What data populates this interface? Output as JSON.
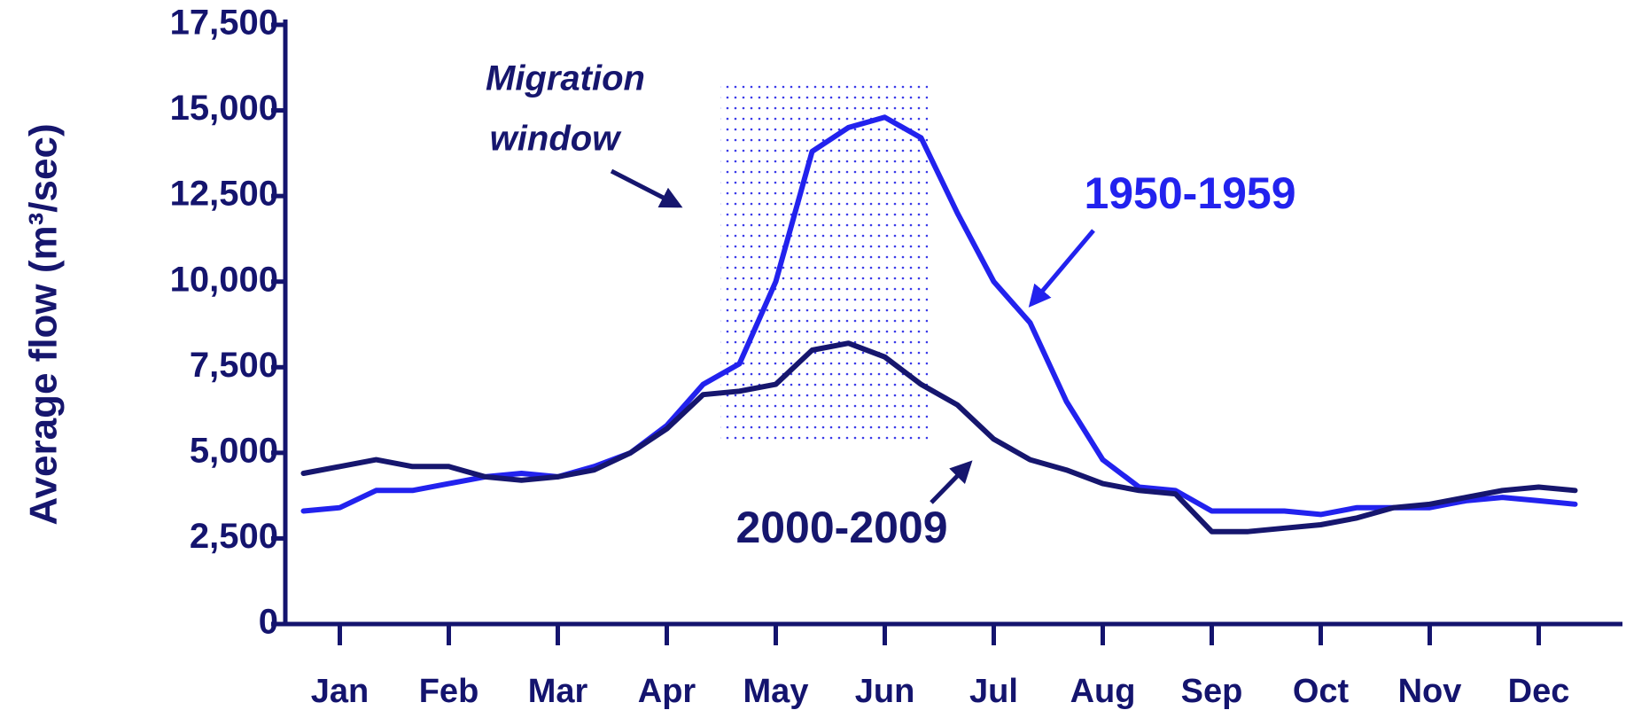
{
  "chart_data": {
    "type": "line",
    "y_label": "Average flow (m³/sec)",
    "annotation_lines": [
      "Migration",
      "window"
    ],
    "categories": [
      null,
      "Jan",
      null,
      null,
      "Feb",
      null,
      null,
      "Mar",
      null,
      null,
      "Apr",
      null,
      null,
      "May",
      null,
      null,
      "Jun",
      null,
      null,
      "Jul",
      null,
      null,
      "Aug",
      null,
      null,
      "Sep",
      null,
      null,
      "Oct",
      null,
      null,
      "Nov",
      null,
      null,
      "Dec",
      null
    ],
    "series": [
      {
        "name": "1950-1959",
        "color": "#2222ee",
        "values": [
          3300,
          3400,
          3900,
          3900,
          4100,
          4300,
          4400,
          4300,
          4600,
          5000,
          5800,
          7000,
          7600,
          10000,
          13800,
          14500,
          14800,
          14200,
          12000,
          10000,
          8800,
          6500,
          4800,
          4000,
          3900,
          3300,
          3300,
          3300,
          3200,
          3400,
          3400,
          3400,
          3600,
          3700,
          3600,
          3500
        ]
      },
      {
        "name": "2000-2009",
        "color": "#16166e",
        "values": [
          4400,
          4600,
          4800,
          4600,
          4600,
          4300,
          4200,
          4300,
          4500,
          5000,
          5700,
          6700,
          6800,
          7000,
          8000,
          8200,
          7800,
          7000,
          6400,
          5400,
          4800,
          4500,
          4100,
          3900,
          3800,
          2700,
          2700,
          2800,
          2900,
          3100,
          3400,
          3500,
          3700,
          3900,
          4000,
          3900
        ]
      }
    ],
    "ylim": [
      0,
      17500
    ],
    "yticks": [
      0,
      {
        "value": 2500,
        "label": "2,500"
      },
      {
        "value": 5000,
        "label": "5,000"
      },
      {
        "value": 7500,
        "label": "7,500"
      },
      {
        "value": 10000,
        "label": "10,000"
      },
      {
        "value": 12500,
        "label": "12,500"
      },
      {
        "value": 15000,
        "label": "15,000"
      },
      {
        "value": 17500,
        "label": "17,500"
      }
    ],
    "axis_color": "#14146e"
  }
}
